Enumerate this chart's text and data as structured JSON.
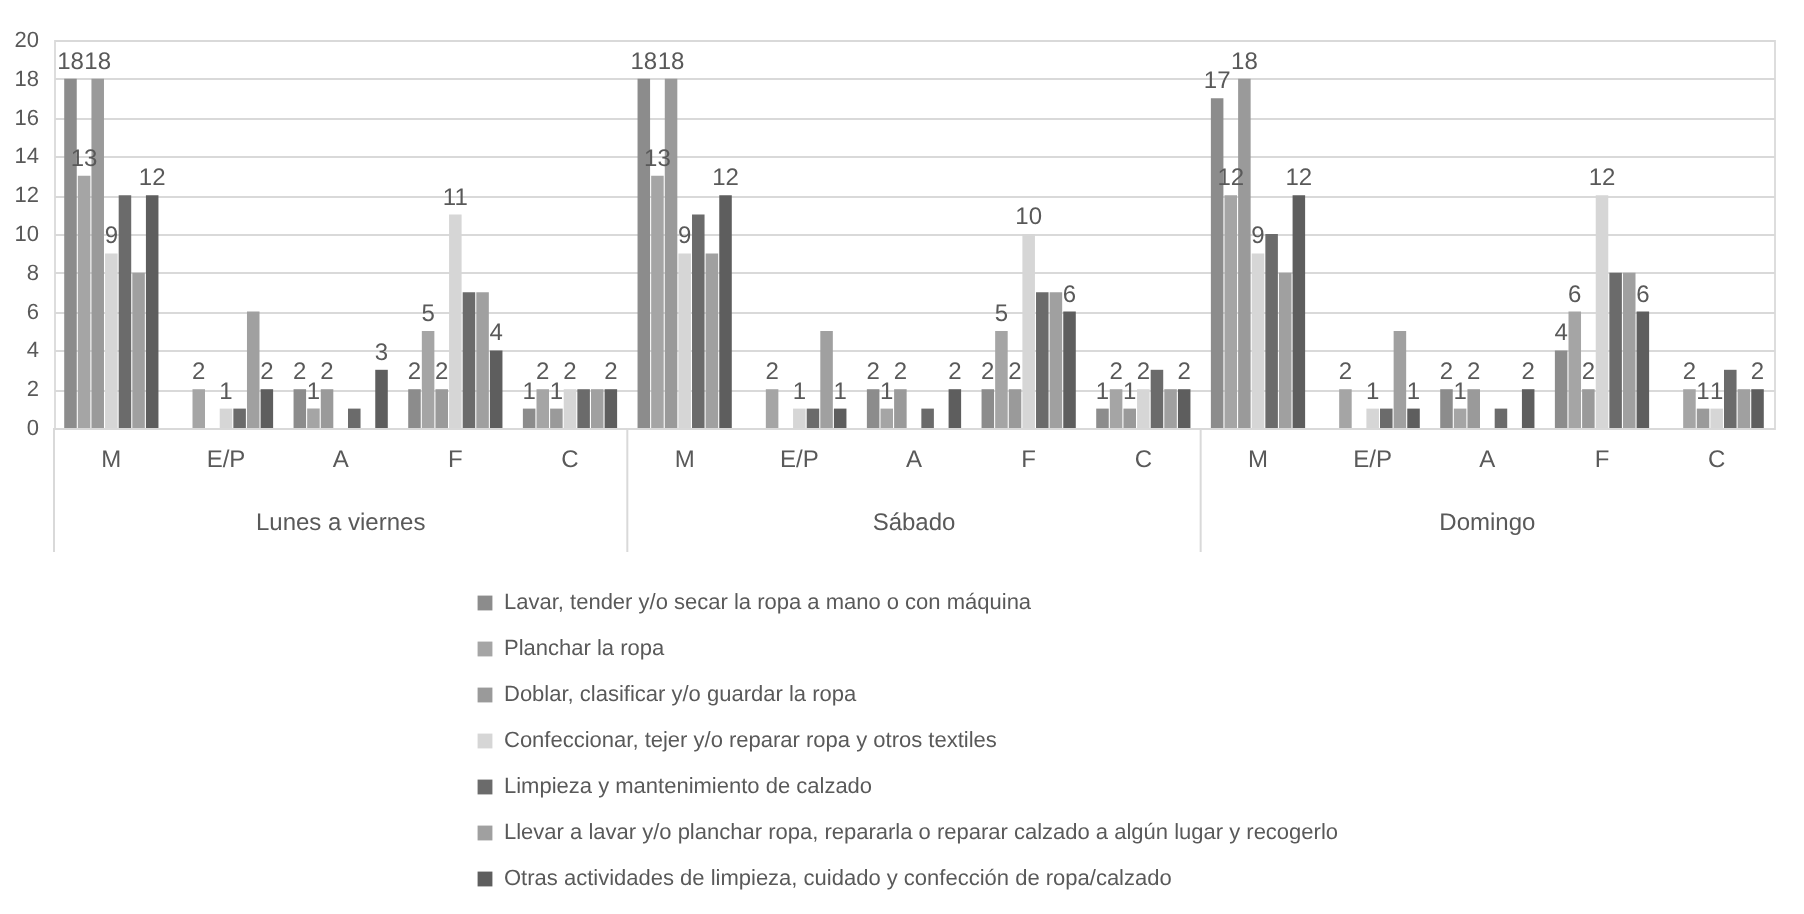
{
  "chart_data": {
    "type": "bar",
    "categories": [
      "M",
      "E/P",
      "A",
      "F",
      "C",
      "M",
      "E/P",
      "A",
      "F",
      "C",
      "M",
      "E/P",
      "A",
      "F",
      "C"
    ],
    "annotations": [
      "Lunes a viernes",
      "Sábado",
      "Domingo"
    ],
    "ylim": [
      0,
      20
    ],
    "yticks": [
      0,
      2,
      4,
      6,
      8,
      10,
      12,
      14,
      16,
      18,
      20
    ],
    "grid": "y",
    "legend": "bottom",
    "series": [
      {
        "name": "Lavar, tender y/o secar la ropa a mano o con máquina",
        "color": "#8c8c8c",
        "values": [
          18,
          null,
          2,
          2,
          1,
          18,
          null,
          2,
          2,
          1,
          17,
          null,
          2,
          4,
          null
        ],
        "value_labels": [
          "18",
          null,
          "2",
          "2",
          "1",
          "18",
          null,
          "2",
          "2",
          "1",
          "17",
          null,
          "2",
          "4",
          null
        ]
      },
      {
        "name": "Planchar la ropa",
        "color": "#a5a5a5",
        "values": [
          13,
          2,
          1,
          5,
          2,
          13,
          2,
          1,
          5,
          2,
          12,
          2,
          1,
          6,
          2
        ],
        "value_labels": [
          "13",
          "2",
          "1",
          "5",
          "2",
          "13",
          "2",
          "1",
          "5",
          "2",
          "12",
          "2",
          "1",
          "6",
          "2"
        ]
      },
      {
        "name": "Doblar, clasificar y/o guardar la ropa",
        "color": "#9a9a9a",
        "values": [
          18,
          null,
          2,
          2,
          1,
          18,
          null,
          2,
          2,
          1,
          18,
          null,
          2,
          2,
          1
        ],
        "value_labels": [
          "18",
          null,
          "2",
          "2",
          "1",
          "18",
          null,
          "2",
          "2",
          "1",
          "18",
          null,
          "2",
          "2",
          "1"
        ]
      },
      {
        "name": "Confeccionar, tejer y/o reparar ropa y otros textiles",
        "color": "#d6d6d6",
        "values": [
          9,
          1,
          null,
          11,
          2,
          9,
          1,
          null,
          10,
          2,
          9,
          1,
          null,
          12,
          1
        ],
        "value_labels": [
          "9",
          "1",
          null,
          "11",
          "2",
          "9",
          "1",
          null,
          "10",
          "2",
          "9",
          "1",
          null,
          "12",
          "1"
        ]
      },
      {
        "name": "Limpieza y mantenimiento de calzado",
        "color": "#6b6b6b",
        "values": [
          12,
          1,
          1,
          7,
          2,
          11,
          1,
          1,
          7,
          3,
          10,
          1,
          1,
          8,
          3
        ]
      },
      {
        "name": "Llevar a lavar y/o planchar ropa, repararla o reparar calzado a algún lugar y recogerlo",
        "color": "#a0a0a0",
        "values": [
          8,
          6,
          null,
          7,
          2,
          9,
          5,
          null,
          7,
          2,
          8,
          5,
          null,
          8,
          2
        ]
      },
      {
        "name": "Otras actividades de limpieza, cuidado y confección de ropa/calzado",
        "color": "#5e5e5e",
        "values": [
          12,
          2,
          3,
          4,
          2,
          12,
          1,
          2,
          6,
          2,
          12,
          1,
          2,
          6,
          2
        ],
        "value_labels": [
          "12",
          "2",
          "3",
          "4",
          "2",
          "12",
          "1",
          "2",
          "6",
          "2",
          "12",
          "1",
          "2",
          "6",
          "2"
        ]
      }
    ]
  }
}
